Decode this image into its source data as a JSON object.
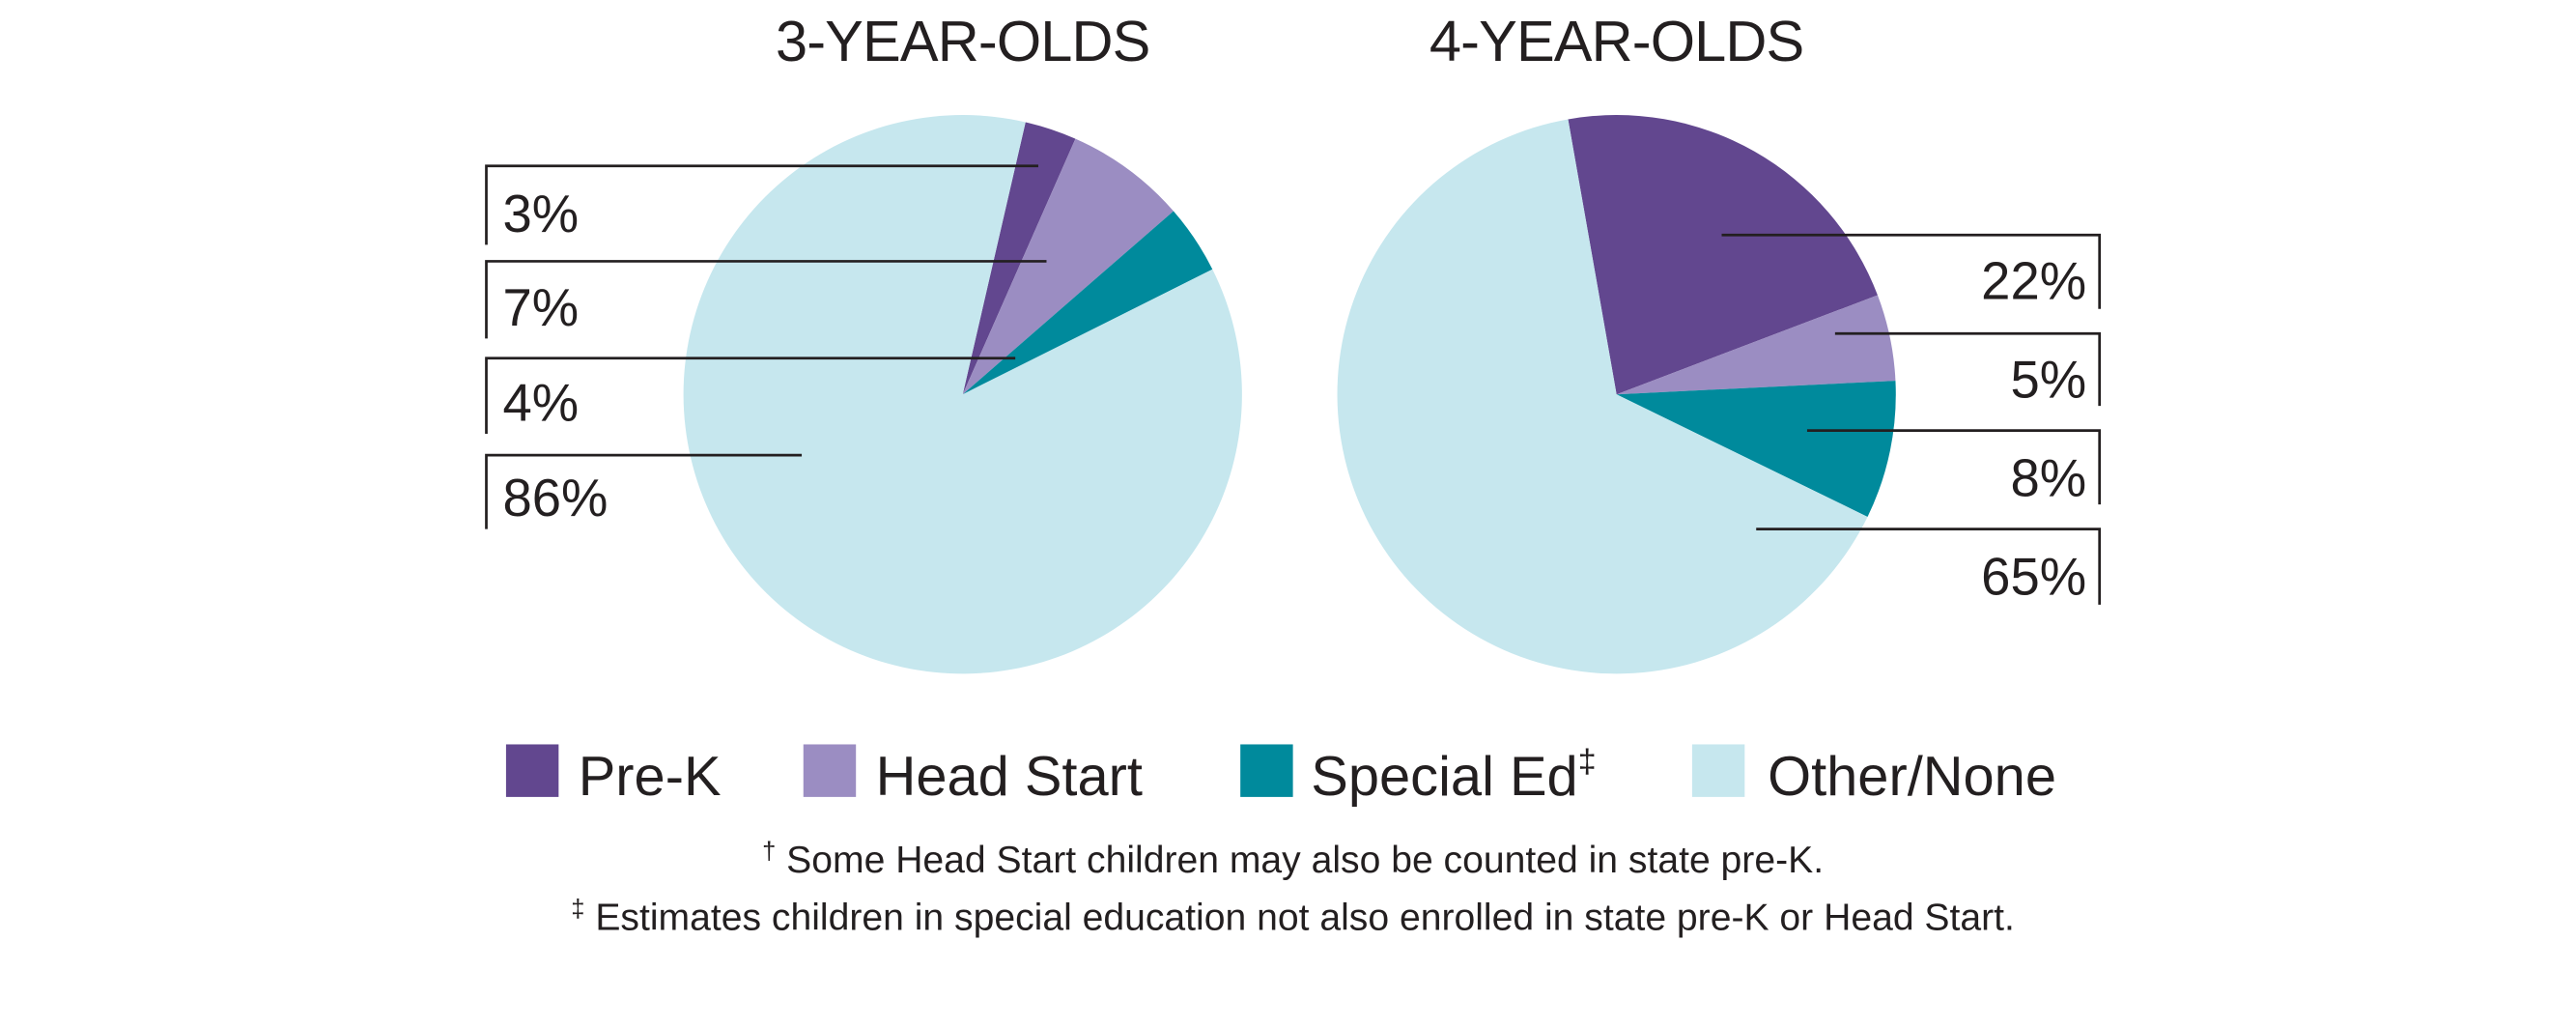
{
  "chart_data": [
    {
      "type": "pie",
      "title": "3-YEAR-OLDS",
      "categories": [
        "Pre-K",
        "Head Start",
        "Special Ed",
        "Other/None"
      ],
      "values": [
        3,
        7,
        4,
        86
      ],
      "labels": [
        "3%",
        "7%",
        "4%",
        "86%"
      ],
      "start_angle_deg": 13,
      "direction": "clockwise",
      "label_side": "left"
    },
    {
      "type": "pie",
      "title": "4-YEAR-OLDS",
      "categories": [
        "Pre-K",
        "Head Start",
        "Special Ed",
        "Other/None"
      ],
      "values": [
        22,
        5,
        8,
        65
      ],
      "labels": [
        "22%",
        "5%",
        "8%",
        "65%"
      ],
      "start_angle_deg": -10,
      "direction": "clockwise",
      "label_side": "right"
    }
  ],
  "legend": {
    "placement": "bottom",
    "items": [
      {
        "label": "Pre-K",
        "color": "#62478f"
      },
      {
        "label": "Head Start",
        "color": "#9b8dc2"
      },
      {
        "label": "Special Ed",
        "sup": "‡",
        "color": "#008a9c"
      },
      {
        "label": "Other/None",
        "color": "#c6e7ee"
      }
    ]
  },
  "footnotes": {
    "dagger": {
      "mark": "†",
      "text": " Some Head Start children may also be counted in state pre-K."
    },
    "double_dagger": {
      "mark": "‡",
      "text": " Estimates children in special education not also enrolled in state pre-K or Head Start."
    }
  }
}
